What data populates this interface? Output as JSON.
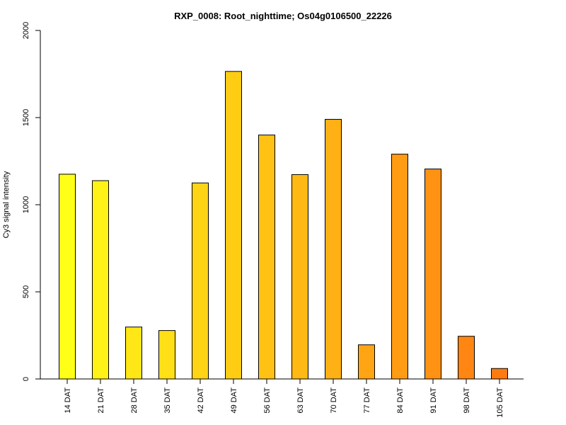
{
  "chart_data": {
    "type": "bar",
    "title": "RXP_0008: Root_nighttime; Os04g0106500_22226",
    "xlabel": "",
    "ylabel": "Cy3 signal intensity",
    "ylim": [
      0,
      2000
    ],
    "yticks": [
      "0",
      "500",
      "1000",
      "1500",
      "2000"
    ],
    "grid": false,
    "categories": [
      "14 DAT",
      "21 DAT",
      "28 DAT",
      "35 DAT",
      "42 DAT",
      "49 DAT",
      "56 DAT",
      "63 DAT",
      "70 DAT",
      "77 DAT",
      "84 DAT",
      "91 DAT",
      "98 DAT",
      "105 DAT"
    ],
    "values": [
      1175,
      1138,
      298,
      278,
      1125,
      1765,
      1400,
      1173,
      1490,
      196,
      1290,
      1205,
      245,
      60
    ],
    "colors": [
      "#FFFF17",
      "#FFF216",
      "#FFE616",
      "#FFDF15",
      "#FFD414",
      "#FFCC14",
      "#FFC214",
      "#FFB914",
      "#FFB014",
      "#FFA514",
      "#FF9C14",
      "#FF9213",
      "#FF8612",
      "#FF7B10"
    ]
  }
}
